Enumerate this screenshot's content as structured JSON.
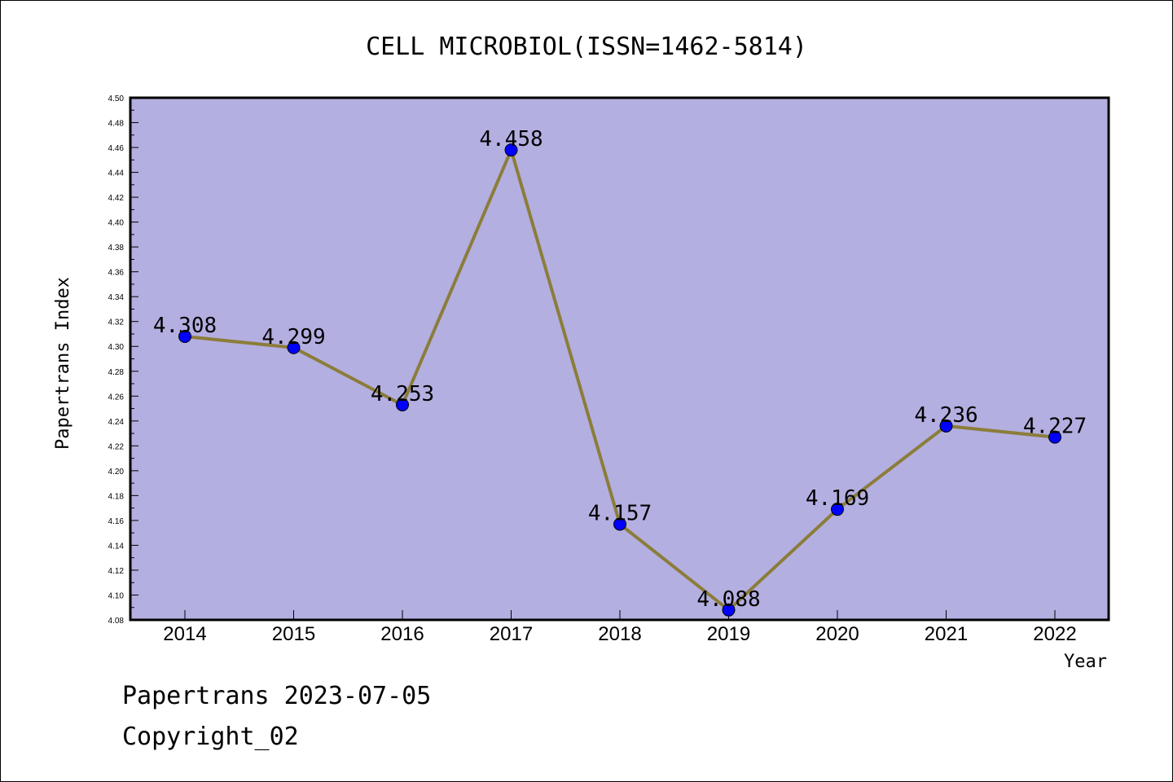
{
  "chart_data": {
    "type": "line",
    "title": "CELL MICROBIOL(ISSN=1462-5814)",
    "xlabel": "Year",
    "ylabel": "Papertrans Index",
    "categories": [
      "2014",
      "2015",
      "2016",
      "2017",
      "2018",
      "2019",
      "2020",
      "2021",
      "2022"
    ],
    "series": [
      {
        "values": [
          4.308,
          4.299,
          4.253,
          4.458,
          4.157,
          4.088,
          4.169,
          4.236,
          4.227
        ],
        "data_labels": [
          "4.308",
          "4.299",
          "4.253",
          "4.458",
          "4.157",
          "4.088",
          "4.169",
          "4.236",
          "4.227"
        ]
      }
    ],
    "ylim": [
      4.08,
      4.5
    ],
    "yticks": [
      "4.08",
      "4.10",
      "4.12",
      "4.14",
      "4.16",
      "4.18",
      "4.20",
      "4.22",
      "4.24",
      "4.26",
      "4.28",
      "4.30",
      "4.32",
      "4.34",
      "4.36",
      "4.38",
      "4.40",
      "4.42",
      "4.44",
      "4.46",
      "4.48",
      "4.50"
    ],
    "grid": false,
    "colors": {
      "plot_background": "#b4afe1",
      "line": "#8b7d3a",
      "marker": "#0000ff"
    }
  },
  "footer": {
    "line1": "Papertrans 2023-07-05",
    "line2": "Copyright_02"
  }
}
